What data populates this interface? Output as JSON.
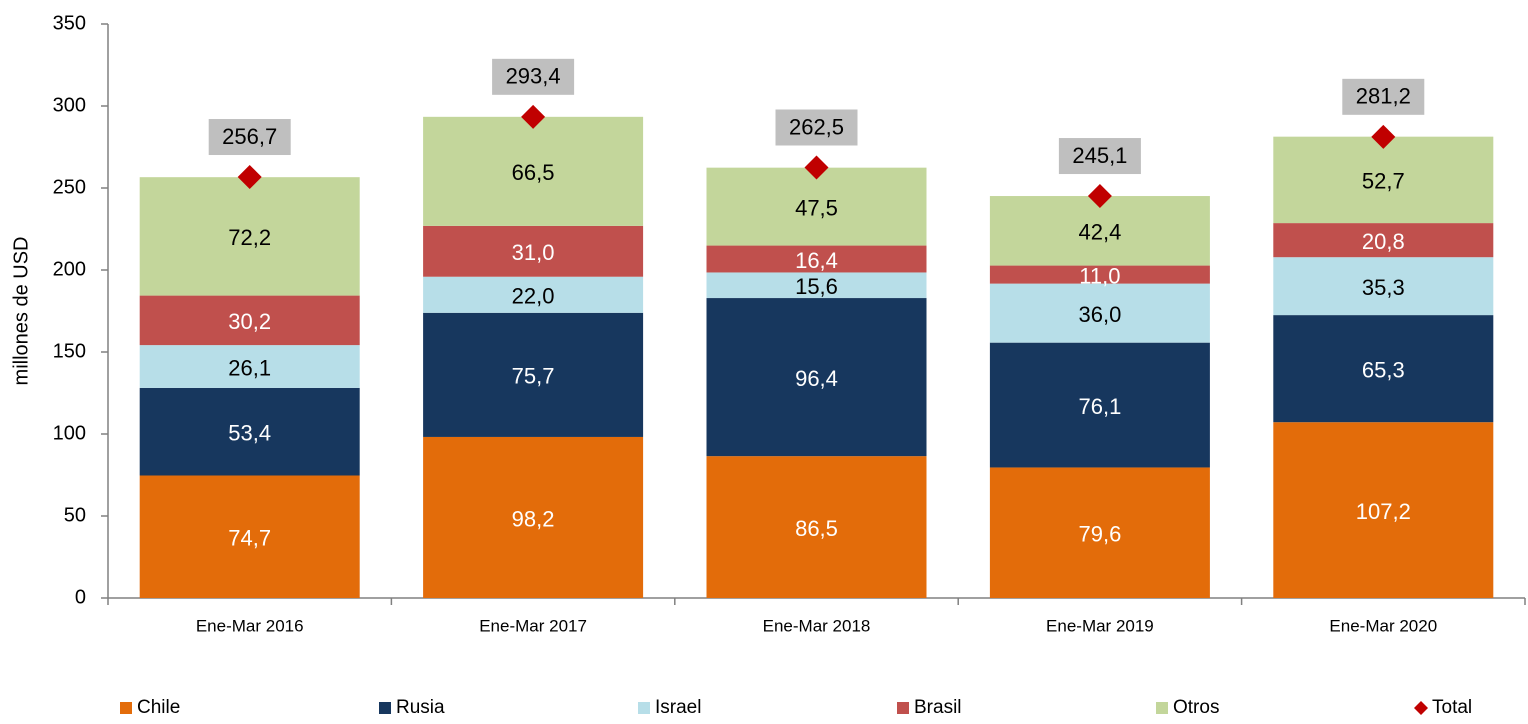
{
  "chart_data": {
    "type": "bar",
    "stacked": true,
    "y_label": "millones de  USD",
    "categories": [
      "Ene-Mar 2016",
      "Ene-Mar 2017",
      "Ene-Mar 2018",
      "Ene-Mar 2019",
      "Ene-Mar 2020"
    ],
    "series": [
      {
        "name": "Chile",
        "color": "#E36C0A",
        "label_color": "#ffffff",
        "values": [
          74.7,
          98.2,
          86.5,
          79.6,
          107.2
        ],
        "value_labels": [
          "74,7",
          "98,2",
          "86,5",
          "79,6",
          "107,2"
        ]
      },
      {
        "name": "Rusia",
        "color": "#17375E",
        "label_color": "#ffffff",
        "values": [
          53.4,
          75.7,
          96.4,
          76.1,
          65.3
        ],
        "value_labels": [
          "53,4",
          "75,7",
          "96,4",
          "76,1",
          "65,3"
        ]
      },
      {
        "name": "Israel",
        "color": "#B7DEE8",
        "label_color": "#000000",
        "values": [
          26.1,
          22.0,
          15.6,
          36.0,
          35.3
        ],
        "value_labels": [
          "26,1",
          "22,0",
          "15,6",
          "36,0",
          "35,3"
        ]
      },
      {
        "name": "Brasil",
        "color": "#C0504D",
        "label_color": "#ffffff",
        "values": [
          30.2,
          31.0,
          16.4,
          11.0,
          20.8
        ],
        "value_labels": [
          "30,2",
          "31,0",
          "16,4",
          "11,0",
          "20,8"
        ]
      },
      {
        "name": "Otros",
        "color": "#C3D69B",
        "label_color": "#000000",
        "values": [
          72.2,
          66.5,
          47.5,
          42.4,
          52.7
        ],
        "value_labels": [
          "72,2",
          "66,5",
          "47,5",
          "42,4",
          "52,7"
        ]
      },
      {
        "name": "Total",
        "type": "scatter",
        "marker": "diamond",
        "color": "#C00000",
        "label_box": "#BFBFBF",
        "values": [
          256.7,
          293.4,
          262.5,
          245.1,
          281.2
        ],
        "value_labels": [
          "256,7",
          "293,4",
          "262,5",
          "245,1",
          "281,2"
        ]
      }
    ],
    "ylim": [
      0,
      350
    ],
    "yticks": [
      0,
      50,
      100,
      150,
      200,
      250,
      300,
      350
    ],
    "grid": false,
    "legend": "bottom"
  }
}
